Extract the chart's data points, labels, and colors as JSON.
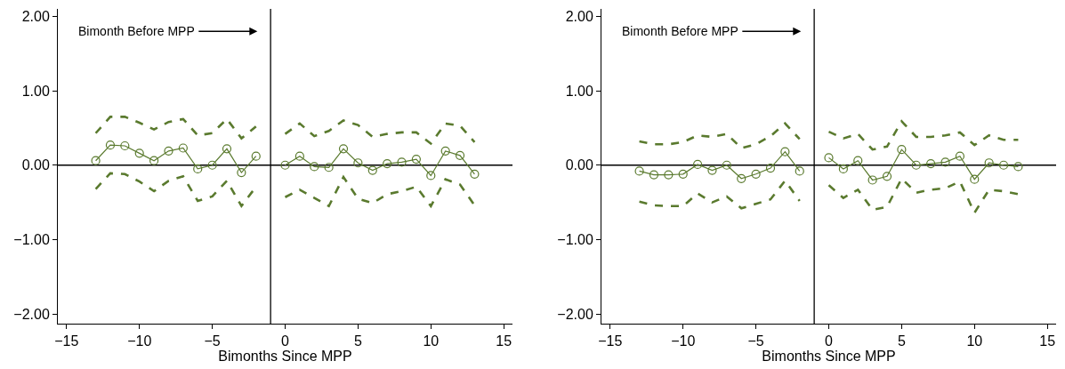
{
  "chart_data": [
    {
      "type": "line",
      "xlabel": "Bimonths Since MPP",
      "x": [
        -13,
        -12,
        -11,
        -10,
        -9,
        -8,
        -7,
        -6,
        -5,
        -4,
        -3,
        -2,
        -1,
        0,
        1,
        2,
        3,
        4,
        5,
        6,
        7,
        8,
        9,
        10,
        11,
        12,
        13
      ],
      "series": [
        {
          "color": "#5a7a2e",
          "marker": "circle",
          "line_style": "solid",
          "values": [
            0.06,
            0.27,
            0.26,
            0.16,
            0.06,
            0.19,
            0.23,
            -0.05,
            0.0,
            0.22,
            -0.1,
            0.12,
            null,
            0.0,
            0.12,
            -0.02,
            -0.03,
            0.22,
            0.03,
            -0.07,
            0.02,
            0.04,
            0.08,
            -0.14,
            0.19,
            0.13,
            -0.12
          ]
        },
        {
          "color": "#5a7a2e",
          "marker": "none",
          "line_style": "dashed",
          "values": [
            0.43,
            0.65,
            0.65,
            0.57,
            0.48,
            0.58,
            0.62,
            0.4,
            0.43,
            0.62,
            0.36,
            0.52,
            null,
            0.42,
            0.56,
            0.39,
            0.46,
            0.6,
            0.54,
            0.38,
            0.42,
            0.44,
            0.44,
            0.29,
            0.56,
            0.53,
            0.31
          ]
        },
        {
          "color": "#5a7a2e",
          "marker": "none",
          "line_style": "dashed",
          "values": [
            -0.32,
            -0.11,
            -0.12,
            -0.22,
            -0.35,
            -0.21,
            -0.15,
            -0.48,
            -0.42,
            -0.21,
            -0.55,
            -0.29,
            null,
            -0.43,
            -0.33,
            -0.44,
            -0.55,
            -0.16,
            -0.45,
            -0.51,
            -0.39,
            -0.35,
            -0.29,
            -0.55,
            -0.19,
            -0.26,
            -0.54
          ]
        }
      ],
      "xlim": [
        -15.6,
        15.6
      ],
      "ylim": [
        -2.13,
        2.1
      ],
      "xticks": [
        {
          "value": -15,
          "label": "−15"
        },
        {
          "value": -10,
          "label": "−10"
        },
        {
          "value": -5,
          "label": "−5"
        },
        0,
        5,
        10,
        15
      ],
      "yticks": [
        {
          "value": -2,
          "label": "−2.00"
        },
        {
          "value": -1,
          "label": "−1.00"
        },
        {
          "value": 0,
          "label": "0.00"
        },
        {
          "value": 1,
          "label": "1.00"
        },
        {
          "value": 2,
          "label": "2.00"
        }
      ],
      "ref_lines": [
        {
          "axis": "x",
          "value": -1,
          "color": "#000000"
        },
        {
          "axis": "y",
          "value": 0,
          "color": "#000000"
        }
      ],
      "annotations": [
        "Bimonth Before MPP"
      ]
    },
    {
      "type": "line",
      "xlabel": "Bimonths Since MPP",
      "x": [
        -13,
        -12,
        -11,
        -10,
        -9,
        -8,
        -7,
        -6,
        -5,
        -4,
        -3,
        -2,
        -1,
        0,
        1,
        2,
        3,
        4,
        5,
        6,
        7,
        8,
        9,
        10,
        11,
        12,
        13
      ],
      "series": [
        {
          "color": "#5a7a2e",
          "marker": "circle",
          "line_style": "solid",
          "values": [
            -0.08,
            -0.13,
            -0.13,
            -0.12,
            0.01,
            -0.07,
            0.0,
            -0.18,
            -0.12,
            -0.04,
            0.18,
            -0.08,
            null,
            0.1,
            -0.05,
            0.06,
            -0.2,
            -0.15,
            0.21,
            0.0,
            0.02,
            0.04,
            0.12,
            -0.19,
            0.03,
            0.0,
            -0.02
          ]
        },
        {
          "color": "#5a7a2e",
          "marker": "none",
          "line_style": "dashed",
          "values": [
            0.32,
            0.28,
            0.28,
            0.31,
            0.4,
            0.38,
            0.42,
            0.23,
            0.28,
            0.39,
            0.56,
            0.35,
            null,
            0.45,
            0.36,
            0.42,
            0.21,
            0.25,
            0.59,
            0.38,
            0.38,
            0.4,
            0.44,
            0.27,
            0.4,
            0.34,
            0.34
          ]
        },
        {
          "color": "#5a7a2e",
          "marker": "none",
          "line_style": "dashed",
          "values": [
            -0.49,
            -0.54,
            -0.55,
            -0.55,
            -0.38,
            -0.5,
            -0.42,
            -0.58,
            -0.52,
            -0.46,
            -0.21,
            -0.48,
            null,
            -0.27,
            -0.44,
            -0.33,
            -0.6,
            -0.56,
            -0.18,
            -0.37,
            -0.33,
            -0.31,
            -0.22,
            -0.64,
            -0.33,
            -0.35,
            -0.39
          ]
        }
      ],
      "xlim": [
        -15.6,
        15.6
      ],
      "ylim": [
        -2.13,
        2.1
      ],
      "xticks": [
        {
          "value": -15,
          "label": "−15"
        },
        {
          "value": -10,
          "label": "−10"
        },
        {
          "value": -5,
          "label": "−5"
        },
        0,
        5,
        10,
        15
      ],
      "yticks": [
        {
          "value": -2,
          "label": "−2.00"
        },
        {
          "value": -1,
          "label": "−1.00"
        },
        {
          "value": 0,
          "label": "0.00"
        },
        {
          "value": 1,
          "label": "1.00"
        },
        {
          "value": 2,
          "label": "2.00"
        }
      ],
      "ref_lines": [
        {
          "axis": "x",
          "value": -1,
          "color": "#000000"
        },
        {
          "axis": "y",
          "value": 0,
          "color": "#000000"
        }
      ],
      "annotations": [
        "Bimonth Before MPP"
      ]
    }
  ]
}
